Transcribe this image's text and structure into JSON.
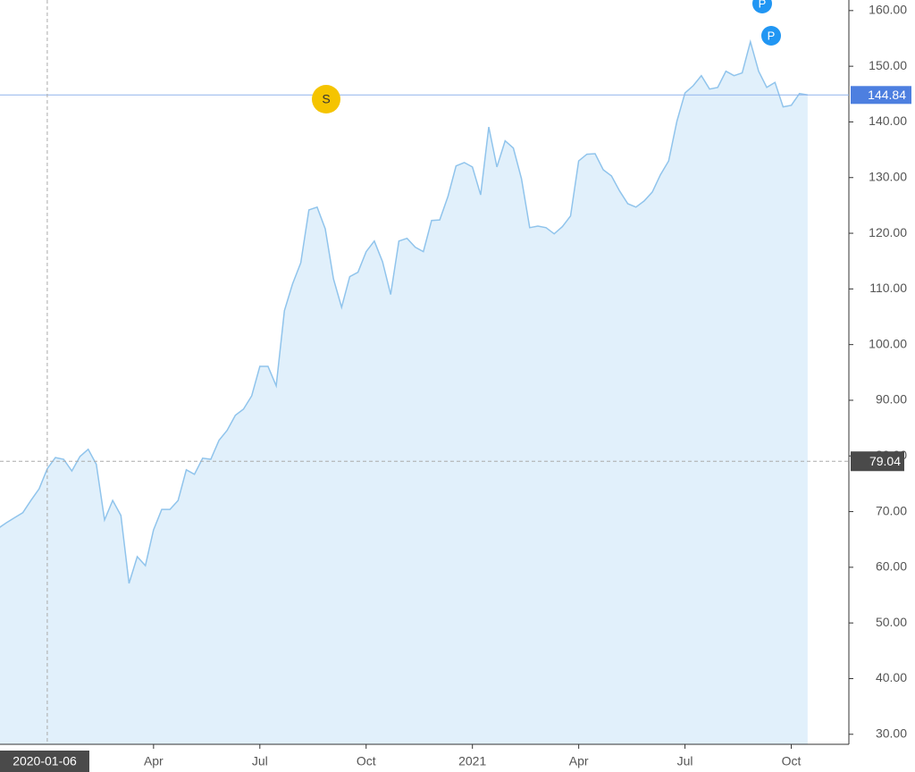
{
  "chart_data": {
    "type": "area",
    "categories": [
      null,
      null,
      null,
      null,
      null,
      null,
      "2020-01-06",
      null,
      null,
      null,
      null,
      null,
      null,
      null,
      null,
      null,
      null,
      null,
      null,
      "Apr",
      null,
      null,
      null,
      null,
      null,
      null,
      null,
      null,
      null,
      null,
      null,
      null,
      "Jul",
      null,
      null,
      null,
      null,
      null,
      null,
      null,
      null,
      null,
      null,
      null,
      null,
      "Oct",
      null,
      null,
      null,
      null,
      null,
      null,
      null,
      null,
      null,
      null,
      null,
      null,
      "2021",
      null,
      null,
      null,
      null,
      null,
      null,
      null,
      null,
      null,
      null,
      null,
      null,
      "Apr",
      null,
      null,
      null,
      null,
      null,
      null,
      null,
      null,
      null,
      null,
      null,
      null,
      "Jul",
      null,
      null,
      null,
      null,
      null,
      null,
      null,
      null,
      null,
      null,
      null,
      null,
      "Oct",
      null,
      null
    ],
    "series": [
      {
        "color": "#90c4ec",
        "values": [
          67.0,
          68.0,
          68.9,
          69.8,
          72.0,
          74.1,
          77.7,
          79.7,
          79.4,
          77.3,
          79.9,
          81.2,
          78.5,
          68.5,
          72.0,
          69.3,
          57.1,
          61.9,
          60.3,
          66.7,
          70.4,
          70.4,
          72.0,
          77.5,
          76.7,
          79.6,
          79.4,
          82.8,
          84.6,
          87.3,
          88.4,
          90.8,
          96.1,
          96.1,
          92.6,
          106.1,
          110.9,
          114.7,
          124.2,
          124.7,
          120.8,
          111.8,
          106.7,
          112.2,
          113.0,
          116.7,
          118.6,
          114.9,
          109.0,
          118.6,
          119.1,
          117.5,
          116.7,
          122.3,
          122.4,
          126.6,
          132.1,
          132.7,
          131.9,
          126.9,
          139.1,
          131.9,
          136.6,
          135.3,
          129.8,
          121.0,
          121.3,
          121.0,
          119.9,
          121.2,
          123.1,
          133.0,
          134.2,
          134.3,
          131.4,
          130.3,
          127.6,
          125.3,
          124.7,
          125.8,
          127.4,
          130.5,
          133.0,
          140.1,
          145.2,
          146.5,
          148.3,
          145.9,
          146.2,
          149.1,
          148.3,
          148.8,
          154.4,
          149.1,
          146.2,
          147.1,
          142.7,
          143.0,
          145.1,
          144.84
        ]
      }
    ],
    "fill_color": "#e1f0fb",
    "ylim": [
      28.2,
      161.9
    ],
    "yticks": [
      {
        "value": 30,
        "label": "30.00"
      },
      {
        "value": 40,
        "label": "40.00"
      },
      {
        "value": 50,
        "label": "50.00"
      },
      {
        "value": 60,
        "label": "60.00"
      },
      {
        "value": 70,
        "label": "70.00"
      },
      {
        "value": 80,
        "label": "80.00"
      },
      {
        "value": 90,
        "label": "90.00"
      },
      {
        "value": 100,
        "label": "100.00"
      },
      {
        "value": 110,
        "label": "110.00"
      },
      {
        "value": 120,
        "label": "120.00"
      },
      {
        "value": 130,
        "label": "130.00"
      },
      {
        "value": 140,
        "label": "140.00"
      },
      {
        "value": 150,
        "label": "150.00"
      },
      {
        "value": 160,
        "label": "160.00"
      }
    ],
    "last_price": 144.84,
    "crosshair_price": 79.04,
    "events": [
      "S",
      "P",
      "P"
    ]
  }
}
